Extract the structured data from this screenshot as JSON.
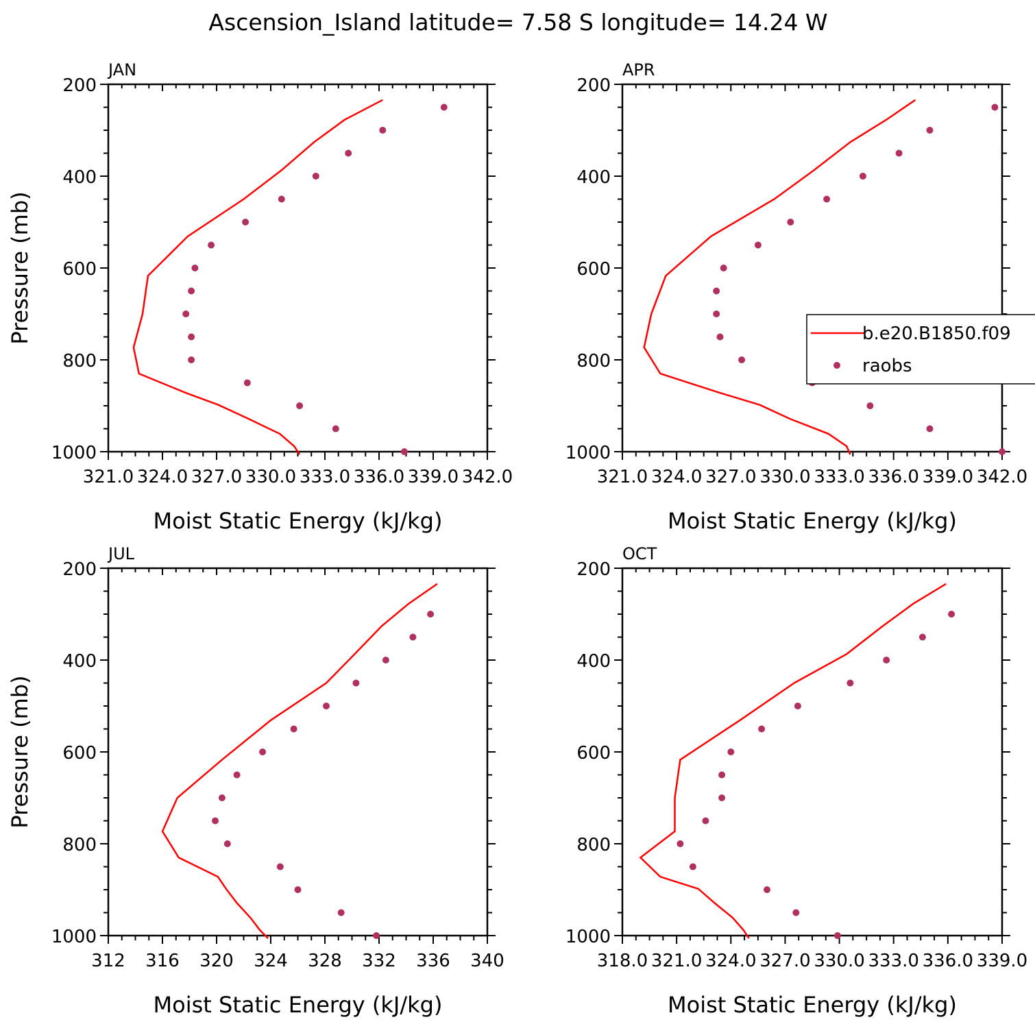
{
  "figure": {
    "title": "Ascension_Island  latitude= 7.58 S longitude= 14.24 W"
  },
  "chart_data": [
    {
      "type": "line",
      "panel_label": "JAN",
      "xlabel": "Moist Static Energy (kJ/kg)",
      "ylabel": "Pressure (mb)",
      "xlim": [
        321.0,
        342.0
      ],
      "ylim": [
        1000,
        200
      ],
      "x_tick_labels": [
        "321.0",
        "324.0",
        "327.0",
        "330.0",
        "333.0",
        "336.0",
        "339.0",
        "342.0"
      ],
      "y_tick_labels": [
        "200",
        "400",
        "600",
        "800",
        "1000"
      ],
      "series": [
        {
          "kind": "line",
          "color": "#ff0000",
          "points": [
            [
              336.2,
              234
            ],
            [
              334.1,
              277
            ],
            [
              332.4,
              326
            ],
            [
              330.6,
              387
            ],
            [
              328.5,
              450
            ],
            [
              325.4,
              531
            ],
            [
              323.2,
              617
            ],
            [
              322.9,
              700
            ],
            [
              322.4,
              773
            ],
            [
              322.7,
              830
            ],
            [
              325.3,
              872
            ],
            [
              327.1,
              898
            ],
            [
              328.8,
              929
            ],
            [
              330.5,
              961
            ],
            [
              331.3,
              988
            ],
            [
              331.6,
              1006
            ]
          ]
        },
        {
          "kind": "scatter",
          "color": "#b03060",
          "points": [
            [
              339.6,
              250
            ],
            [
              336.2,
              300
            ],
            [
              334.3,
              350
            ],
            [
              332.5,
              400
            ],
            [
              330.6,
              450
            ],
            [
              328.6,
              500
            ],
            [
              326.7,
              550
            ],
            [
              325.8,
              600
            ],
            [
              325.6,
              650
            ],
            [
              325.3,
              700
            ],
            [
              325.6,
              750
            ],
            [
              325.6,
              800
            ],
            [
              328.7,
              850
            ],
            [
              331.6,
              900
            ],
            [
              333.6,
              950
            ],
            [
              337.4,
              1000
            ]
          ]
        }
      ]
    },
    {
      "type": "line",
      "panel_label": "APR",
      "xlabel": "Moist Static Energy (kJ/kg)",
      "ylabel": "",
      "xlim": [
        321.0,
        342.0
      ],
      "ylim": [
        1000,
        200
      ],
      "x_tick_labels": [
        "321.0",
        "324.0",
        "327.0",
        "330.0",
        "333.0",
        "336.0",
        "339.0",
        "342.0"
      ],
      "y_tick_labels": [
        "200",
        "400",
        "600",
        "800",
        "1000"
      ],
      "legend": {
        "position": "right",
        "entries": [
          "b.e20.B1850.f09",
          "raobs"
        ]
      },
      "series": [
        {
          "kind": "line",
          "color": "#ff0000",
          "points": [
            [
              337.2,
              234
            ],
            [
              335.6,
              277
            ],
            [
              333.6,
              326
            ],
            [
              331.6,
              387
            ],
            [
              329.4,
              450
            ],
            [
              325.9,
              531
            ],
            [
              323.4,
              617
            ],
            [
              322.6,
              700
            ],
            [
              322.2,
              773
            ],
            [
              323.1,
              830
            ],
            [
              326.4,
              872
            ],
            [
              328.6,
              898
            ],
            [
              330.3,
              929
            ],
            [
              332.4,
              961
            ],
            [
              333.4,
              988
            ],
            [
              333.6,
              1006
            ]
          ]
        },
        {
          "kind": "scatter",
          "color": "#b03060",
          "points": [
            [
              341.6,
              250
            ],
            [
              338.0,
              300
            ],
            [
              336.3,
              350
            ],
            [
              334.3,
              400
            ],
            [
              332.3,
              450
            ],
            [
              330.3,
              500
            ],
            [
              328.5,
              550
            ],
            [
              326.6,
              600
            ],
            [
              326.2,
              650
            ],
            [
              326.2,
              700
            ],
            [
              326.4,
              750
            ],
            [
              327.6,
              800
            ],
            [
              331.5,
              850
            ],
            [
              334.7,
              900
            ],
            [
              338.0,
              950
            ],
            [
              342.0,
              1000
            ]
          ]
        }
      ]
    },
    {
      "type": "line",
      "panel_label": "JUL",
      "xlabel": "Moist Static Energy (kJ/kg)",
      "ylabel": "Pressure (mb)",
      "xlim": [
        312,
        340
      ],
      "ylim": [
        1000,
        200
      ],
      "x_tick_labels": [
        "312",
        "316",
        "320",
        "324",
        "328",
        "332",
        "336",
        "340"
      ],
      "y_tick_labels": [
        "200",
        "400",
        "600",
        "800",
        "1000"
      ],
      "series": [
        {
          "kind": "line",
          "color": "#ff0000",
          "points": [
            [
              336.3,
              234
            ],
            [
              334.2,
              277
            ],
            [
              332.2,
              326
            ],
            [
              330.2,
              387
            ],
            [
              328.1,
              450
            ],
            [
              324.0,
              531
            ],
            [
              320.4,
              617
            ],
            [
              317.1,
              700
            ],
            [
              316.0,
              773
            ],
            [
              317.2,
              830
            ],
            [
              320.1,
              872
            ],
            [
              320.7,
              898
            ],
            [
              321.5,
              929
            ],
            [
              322.5,
              961
            ],
            [
              323.2,
              988
            ],
            [
              323.8,
              1006
            ]
          ]
        },
        {
          "kind": "scatter",
          "color": "#b03060",
          "points": [
            [
              335.8,
              300
            ],
            [
              334.5,
              350
            ],
            [
              332.5,
              400
            ],
            [
              330.3,
              450
            ],
            [
              328.1,
              500
            ],
            [
              325.7,
              550
            ],
            [
              323.4,
              600
            ],
            [
              321.5,
              650
            ],
            [
              320.4,
              700
            ],
            [
              319.9,
              750
            ],
            [
              320.8,
              800
            ],
            [
              324.7,
              850
            ],
            [
              326.0,
              900
            ],
            [
              329.2,
              950
            ],
            [
              331.8,
              1000
            ]
          ]
        }
      ]
    },
    {
      "type": "line",
      "panel_label": "OCT",
      "xlabel": "Moist Static Energy (kJ/kg)",
      "ylabel": "",
      "xlim": [
        318.0,
        339.0
      ],
      "ylim": [
        1000,
        200
      ],
      "x_tick_labels": [
        "318.0",
        "321.0",
        "324.0",
        "327.0",
        "330.0",
        "333.0",
        "336.0",
        "339.0"
      ],
      "y_tick_labels": [
        "200",
        "400",
        "600",
        "800",
        "1000"
      ],
      "series": [
        {
          "kind": "line",
          "color": "#ff0000",
          "points": [
            [
              335.9,
              234
            ],
            [
              334.1,
              277
            ],
            [
              332.4,
              326
            ],
            [
              330.4,
              387
            ],
            [
              327.5,
              450
            ],
            [
              324.5,
              531
            ],
            [
              321.2,
              617
            ],
            [
              320.9,
              700
            ],
            [
              320.9,
              773
            ],
            [
              319.0,
              830
            ],
            [
              320.1,
              872
            ],
            [
              322.2,
              898
            ],
            [
              323.1,
              929
            ],
            [
              324.1,
              961
            ],
            [
              324.7,
              988
            ],
            [
              325.0,
              1006
            ]
          ]
        },
        {
          "kind": "scatter",
          "color": "#b03060",
          "points": [
            [
              336.2,
              300
            ],
            [
              334.6,
              350
            ],
            [
              332.6,
              400
            ],
            [
              330.6,
              450
            ],
            [
              327.7,
              500
            ],
            [
              325.7,
              550
            ],
            [
              324.0,
              600
            ],
            [
              323.5,
              650
            ],
            [
              323.5,
              700
            ],
            [
              322.6,
              750
            ],
            [
              321.2,
              800
            ],
            [
              321.9,
              850
            ],
            [
              326.0,
              900
            ],
            [
              327.6,
              950
            ],
            [
              329.9,
              1000
            ]
          ]
        }
      ]
    }
  ]
}
